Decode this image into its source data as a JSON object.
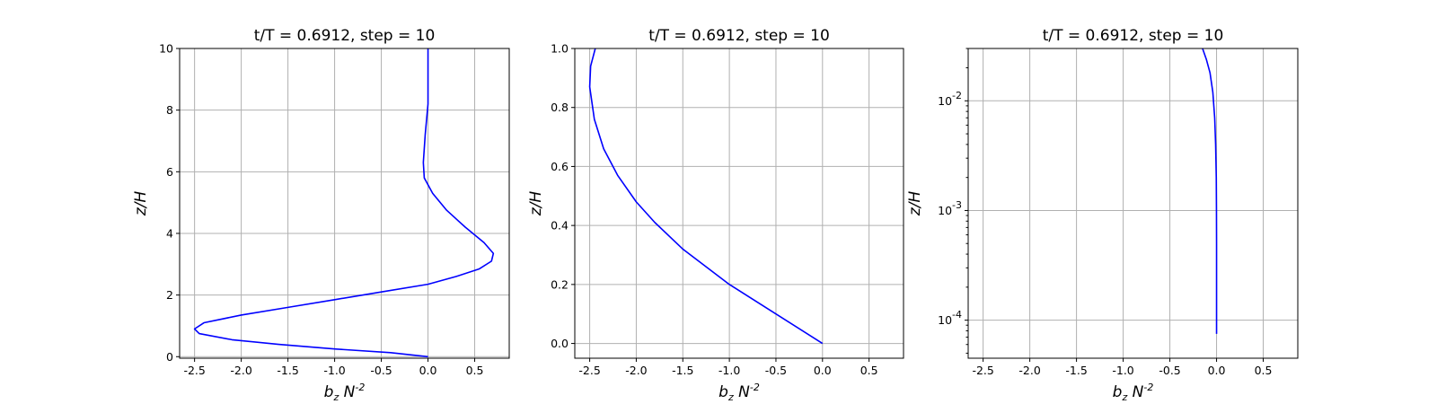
{
  "colors": {
    "line": "#0000ff",
    "grid": "#b0b0b0"
  },
  "chart_data": [
    {
      "type": "line",
      "title": "t/T = 0.6912, step = 10",
      "xlabel": "b_z N^{-2}",
      "ylabel": "z/H",
      "xscale": "linear",
      "yscale": "linear",
      "xlim": [
        -2.66,
        0.87
      ],
      "ylim": [
        -0.05,
        10
      ],
      "xticks": [
        -2.5,
        -2.0,
        -1.5,
        -1.0,
        -0.5,
        0.0,
        0.5
      ],
      "xtick_labels": [
        "-2.5",
        "-2.0",
        "-1.5",
        "-1.0",
        "-0.5",
        "0.0",
        "0.5"
      ],
      "yticks": [
        0,
        2,
        4,
        6,
        8,
        10
      ],
      "ytick_labels": [
        "0",
        "2",
        "4",
        "6",
        "8",
        "10"
      ],
      "grid": true,
      "series": [
        {
          "color": "#0000ff",
          "x": [
            0.0,
            -0.4,
            -1.0,
            -1.6,
            -2.1,
            -2.45,
            -2.5,
            -2.4,
            -2.0,
            -1.5,
            -1.0,
            -0.5,
            0.0,
            0.3,
            0.55,
            0.68,
            0.7,
            0.6,
            0.4,
            0.2,
            0.05,
            -0.04,
            -0.05,
            -0.03,
            0.0,
            0.0,
            0.0
          ],
          "y": [
            0.0,
            0.13,
            0.25,
            0.4,
            0.55,
            0.75,
            0.9,
            1.1,
            1.35,
            1.6,
            1.85,
            2.1,
            2.35,
            2.6,
            2.85,
            3.1,
            3.35,
            3.7,
            4.2,
            4.75,
            5.3,
            5.8,
            6.3,
            7.2,
            8.2,
            9.2,
            10.0
          ]
        }
      ]
    },
    {
      "type": "line",
      "title": "t/T = 0.6912, step = 10",
      "xlabel": "b_z N^{-2}",
      "ylabel": "z/H",
      "xscale": "linear",
      "yscale": "linear",
      "xlim": [
        -2.66,
        0.87
      ],
      "ylim": [
        -0.05,
        1.0
      ],
      "xticks": [
        -2.5,
        -2.0,
        -1.5,
        -1.0,
        -0.5,
        0.0,
        0.5
      ],
      "xtick_labels": [
        "-2.5",
        "-2.0",
        "-1.5",
        "-1.0",
        "-0.5",
        "0.0",
        "0.5"
      ],
      "yticks": [
        0.0,
        0.2,
        0.4,
        0.6,
        0.8,
        1.0
      ],
      "ytick_labels": [
        "0.0",
        "0.2",
        "0.4",
        "0.6",
        "0.8",
        "1.0"
      ],
      "grid": true,
      "series": [
        {
          "color": "#0000ff",
          "x": [
            0.0,
            -0.5,
            -1.0,
            -1.5,
            -1.8,
            -2.0,
            -2.2,
            -2.35,
            -2.45,
            -2.5,
            -2.49,
            -2.44
          ],
          "y": [
            0.0,
            0.1,
            0.2,
            0.32,
            0.41,
            0.48,
            0.57,
            0.66,
            0.76,
            0.87,
            0.94,
            1.0
          ]
        }
      ]
    },
    {
      "type": "line",
      "title": "t/T = 0.6912, step = 10",
      "xlabel": "b_z N^{-2}",
      "ylabel": "z/H",
      "xscale": "linear",
      "yscale": "log",
      "xlim": [
        -2.66,
        0.87
      ],
      "ylim": [
        4.5e-05,
        0.03
      ],
      "xticks": [
        -2.5,
        -2.0,
        -1.5,
        -1.0,
        -0.5,
        0.0,
        0.5
      ],
      "xtick_labels": [
        "-2.5",
        "-2.0",
        "-1.5",
        "-1.0",
        "-0.5",
        "0.0",
        "0.5"
      ],
      "yticks": [
        0.0001,
        0.001,
        0.01
      ],
      "ytick_labels": [
        "10^{-4}",
        "10^{-3}",
        "10^{-2}"
      ],
      "grid": true,
      "series": [
        {
          "color": "#0000ff",
          "x": [
            0.0,
            0.0,
            -0.001,
            -0.003,
            -0.01,
            -0.02,
            -0.04,
            -0.07,
            -0.11,
            -0.15
          ],
          "y": [
            7.5e-05,
            0.0005,
            0.001,
            0.002,
            0.004,
            0.007,
            0.012,
            0.018,
            0.024,
            0.03
          ]
        }
      ]
    }
  ]
}
